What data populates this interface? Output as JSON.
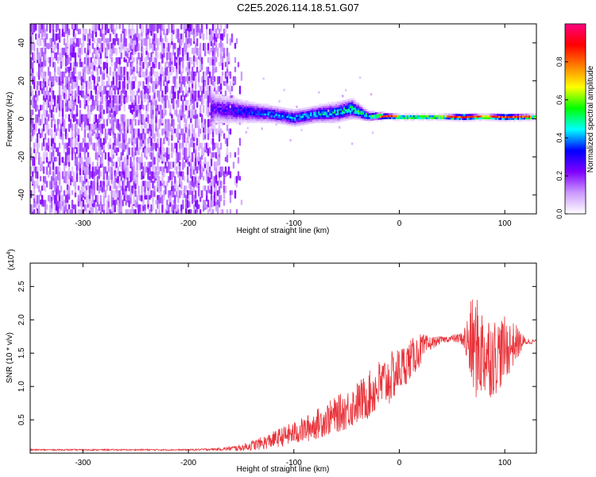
{
  "title": "C2E5.2026.114.18.51.G07",
  "chart_data": [
    {
      "type": "heatmap",
      "xlabel": "Height of straight line (km)",
      "ylabel": "Frequency (Hz)",
      "xlim": [
        -350,
        130
      ],
      "ylim": [
        -50,
        50
      ],
      "xticks": [
        -300,
        -200,
        -100,
        0,
        100
      ],
      "xtick_labels": [
        "-300",
        "-200",
        "-100",
        "0",
        "100"
      ],
      "yticks": [
        -40,
        -20,
        0,
        20,
        40
      ],
      "ytick_labels": [
        "-40",
        "-20",
        "0",
        "20",
        "40"
      ],
      "colorbar": {
        "label": "Normalized spectral amplitude",
        "range": [
          0,
          1
        ],
        "ticks": [
          0.0,
          0.2,
          0.4,
          0.6,
          0.8
        ],
        "tick_labels": [
          "0.0",
          "0.2",
          "0.4",
          "0.6",
          "0.8"
        ],
        "stops": [
          "#ffffff",
          "#cc99ff",
          "#7f00ff",
          "#0000ff",
          "#00ffff",
          "#00ff00",
          "#ffff00",
          "#ff8000",
          "#ff0000",
          "#ff0080"
        ]
      },
      "profile": {
        "description_free": true,
        "x": [
          -350,
          -300,
          -250,
          -200,
          -175,
          -160,
          -140,
          -120,
          -100,
          -80,
          -60,
          -45,
          -30,
          -15,
          0,
          20,
          40,
          60,
          80,
          100,
          130
        ],
        "center_freq": [
          0,
          0,
          0,
          0,
          5,
          4,
          3,
          2,
          0,
          2,
          3,
          5,
          1,
          1,
          0.5,
          0.5,
          0.5,
          0.5,
          0.5,
          0.5,
          0.5
        ],
        "band_width": [
          50,
          50,
          50,
          45,
          9,
          8,
          6,
          5,
          5,
          5,
          6,
          6,
          3,
          2,
          1.5,
          1.5,
          1.5,
          2,
          1.5,
          2,
          1.5
        ],
        "peak_amplitude": [
          0.15,
          0.15,
          0.15,
          0.15,
          0.25,
          0.3,
          0.35,
          0.4,
          0.4,
          0.45,
          0.45,
          0.5,
          0.5,
          0.7,
          0.7,
          0.7,
          0.75,
          0.8,
          0.8,
          0.8,
          0.8
        ]
      }
    },
    {
      "type": "line",
      "xlabel": "Height of straight line (km)",
      "ylabel": "SNR (10 * v/v)",
      "y_multiplier": "(x10",
      "y_multiplier_exp": "4",
      "y_multiplier_close": ")",
      "xlim": [
        -350,
        130
      ],
      "ylim": [
        0,
        2.85
      ],
      "xticks": [
        -300,
        -200,
        -100,
        0,
        100
      ],
      "xtick_labels": [
        "-300",
        "-200",
        "-100",
        "0",
        "100"
      ],
      "yticks": [
        0.5,
        1.0,
        1.5,
        2.0,
        2.5
      ],
      "ytick_labels": [
        "0.5",
        "1.0",
        "1.5",
        "2.0",
        "2.5"
      ],
      "color": "#e8333a",
      "series": [
        {
          "name": "SNR",
          "x": [
            -350,
            -300,
            -250,
            -200,
            -170,
            -150,
            -130,
            -110,
            -90,
            -70,
            -50,
            -30,
            -20,
            -10,
            0,
            10,
            20,
            30,
            40,
            50,
            60,
            70,
            80,
            90,
            100,
            110,
            120,
            130
          ],
          "y": [
            0.05,
            0.05,
            0.05,
            0.05,
            0.06,
            0.08,
            0.15,
            0.25,
            0.35,
            0.5,
            0.65,
            0.85,
            1.0,
            1.1,
            1.25,
            1.4,
            1.55,
            1.65,
            1.7,
            1.72,
            1.72,
            1.6,
            1.5,
            1.45,
            1.55,
            1.65,
            1.67,
            1.68
          ],
          "noise_amplitude": [
            0.01,
            0.01,
            0.01,
            0.01,
            0.02,
            0.05,
            0.1,
            0.15,
            0.2,
            0.25,
            0.3,
            0.35,
            0.4,
            0.4,
            0.35,
            0.3,
            0.25,
            0.1,
            0.05,
            0.05,
            0.1,
            0.8,
            0.7,
            0.6,
            0.5,
            0.3,
            0.05,
            0.03
          ]
        }
      ]
    }
  ]
}
